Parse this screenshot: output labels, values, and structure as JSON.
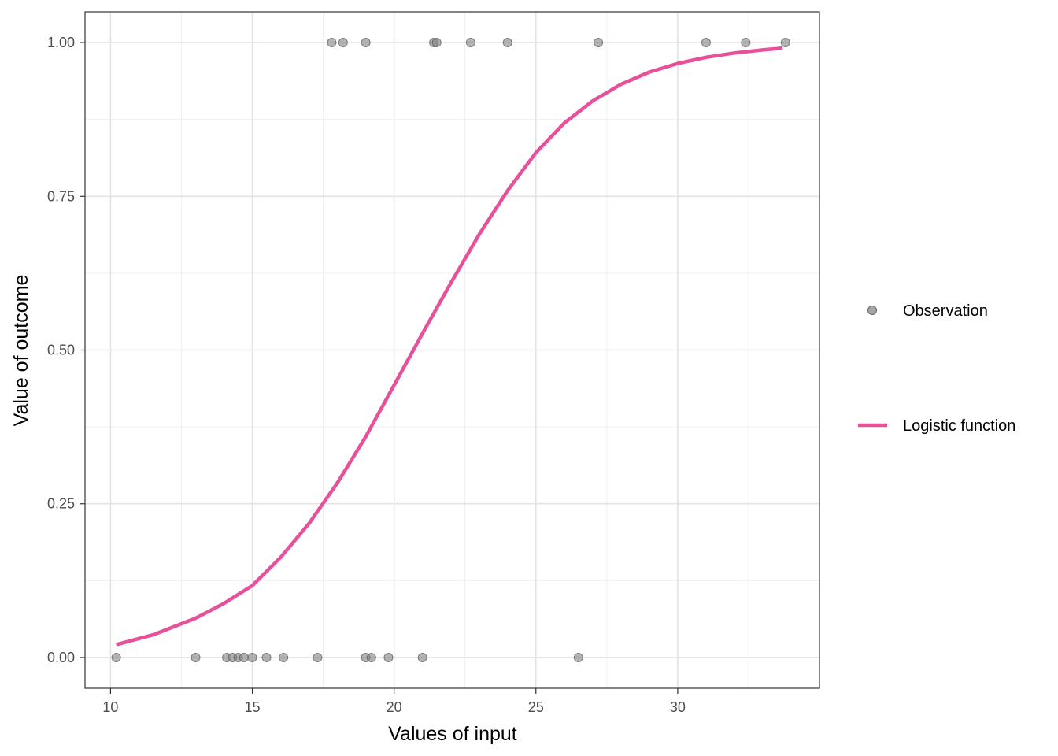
{
  "chart_data": {
    "type": "scatter",
    "xlabel": "Values of input",
    "ylabel": "Value of outcome",
    "xlim": [
      9.1,
      35.0
    ],
    "ylim": [
      -0.05,
      1.05
    ],
    "x_ticks": [
      10,
      15,
      20,
      25,
      30
    ],
    "x_tick_labels": [
      "10",
      "15",
      "20",
      "25",
      "30"
    ],
    "y_ticks": [
      0,
      0.25,
      0.5,
      0.75,
      1
    ],
    "y_tick_labels": [
      "0.00",
      "0.25",
      "0.50",
      "0.75",
      "1.00"
    ],
    "grid": true,
    "legend_position": "right",
    "series": [
      {
        "name": "Observation",
        "type": "scatter",
        "color": "#808080",
        "points": [
          {
            "x": 10.2,
            "y": 0
          },
          {
            "x": 13.0,
            "y": 0
          },
          {
            "x": 14.1,
            "y": 0
          },
          {
            "x": 14.3,
            "y": 0
          },
          {
            "x": 14.5,
            "y": 0
          },
          {
            "x": 14.7,
            "y": 0
          },
          {
            "x": 15.0,
            "y": 0
          },
          {
            "x": 15.5,
            "y": 0
          },
          {
            "x": 16.1,
            "y": 0
          },
          {
            "x": 17.3,
            "y": 0
          },
          {
            "x": 19.0,
            "y": 0
          },
          {
            "x": 19.2,
            "y": 0
          },
          {
            "x": 19.8,
            "y": 0
          },
          {
            "x": 21.0,
            "y": 0
          },
          {
            "x": 26.5,
            "y": 0
          },
          {
            "x": 17.8,
            "y": 1
          },
          {
            "x": 18.2,
            "y": 1
          },
          {
            "x": 19.0,
            "y": 1
          },
          {
            "x": 21.4,
            "y": 1
          },
          {
            "x": 21.5,
            "y": 1
          },
          {
            "x": 22.7,
            "y": 1
          },
          {
            "x": 24.0,
            "y": 1
          },
          {
            "x": 27.2,
            "y": 1
          },
          {
            "x": 31.0,
            "y": 1
          },
          {
            "x": 32.4,
            "y": 1
          },
          {
            "x": 33.8,
            "y": 1
          }
        ]
      },
      {
        "name": "Logistic function",
        "type": "line",
        "color": "#e7519a",
        "points": [
          {
            "x": 10.2,
            "y": 0.021
          },
          {
            "x": 11.5,
            "y": 0.037
          },
          {
            "x": 13.0,
            "y": 0.064
          },
          {
            "x": 14.0,
            "y": 0.088
          },
          {
            "x": 15.0,
            "y": 0.117
          },
          {
            "x": 16.0,
            "y": 0.163
          },
          {
            "x": 17.0,
            "y": 0.218
          },
          {
            "x": 18.0,
            "y": 0.284
          },
          {
            "x": 19.0,
            "y": 0.359
          },
          {
            "x": 20.0,
            "y": 0.443
          },
          {
            "x": 21.0,
            "y": 0.527
          },
          {
            "x": 22.0,
            "y": 0.609
          },
          {
            "x": 23.0,
            "y": 0.688
          },
          {
            "x": 24.0,
            "y": 0.759
          },
          {
            "x": 25.0,
            "y": 0.821
          },
          {
            "x": 26.0,
            "y": 0.869
          },
          {
            "x": 27.0,
            "y": 0.905
          },
          {
            "x": 28.0,
            "y": 0.932
          },
          {
            "x": 29.0,
            "y": 0.952
          },
          {
            "x": 30.0,
            "y": 0.966
          },
          {
            "x": 31.0,
            "y": 0.976
          },
          {
            "x": 32.0,
            "y": 0.983
          },
          {
            "x": 33.0,
            "y": 0.988
          },
          {
            "x": 33.7,
            "y": 0.991
          }
        ]
      }
    ]
  }
}
